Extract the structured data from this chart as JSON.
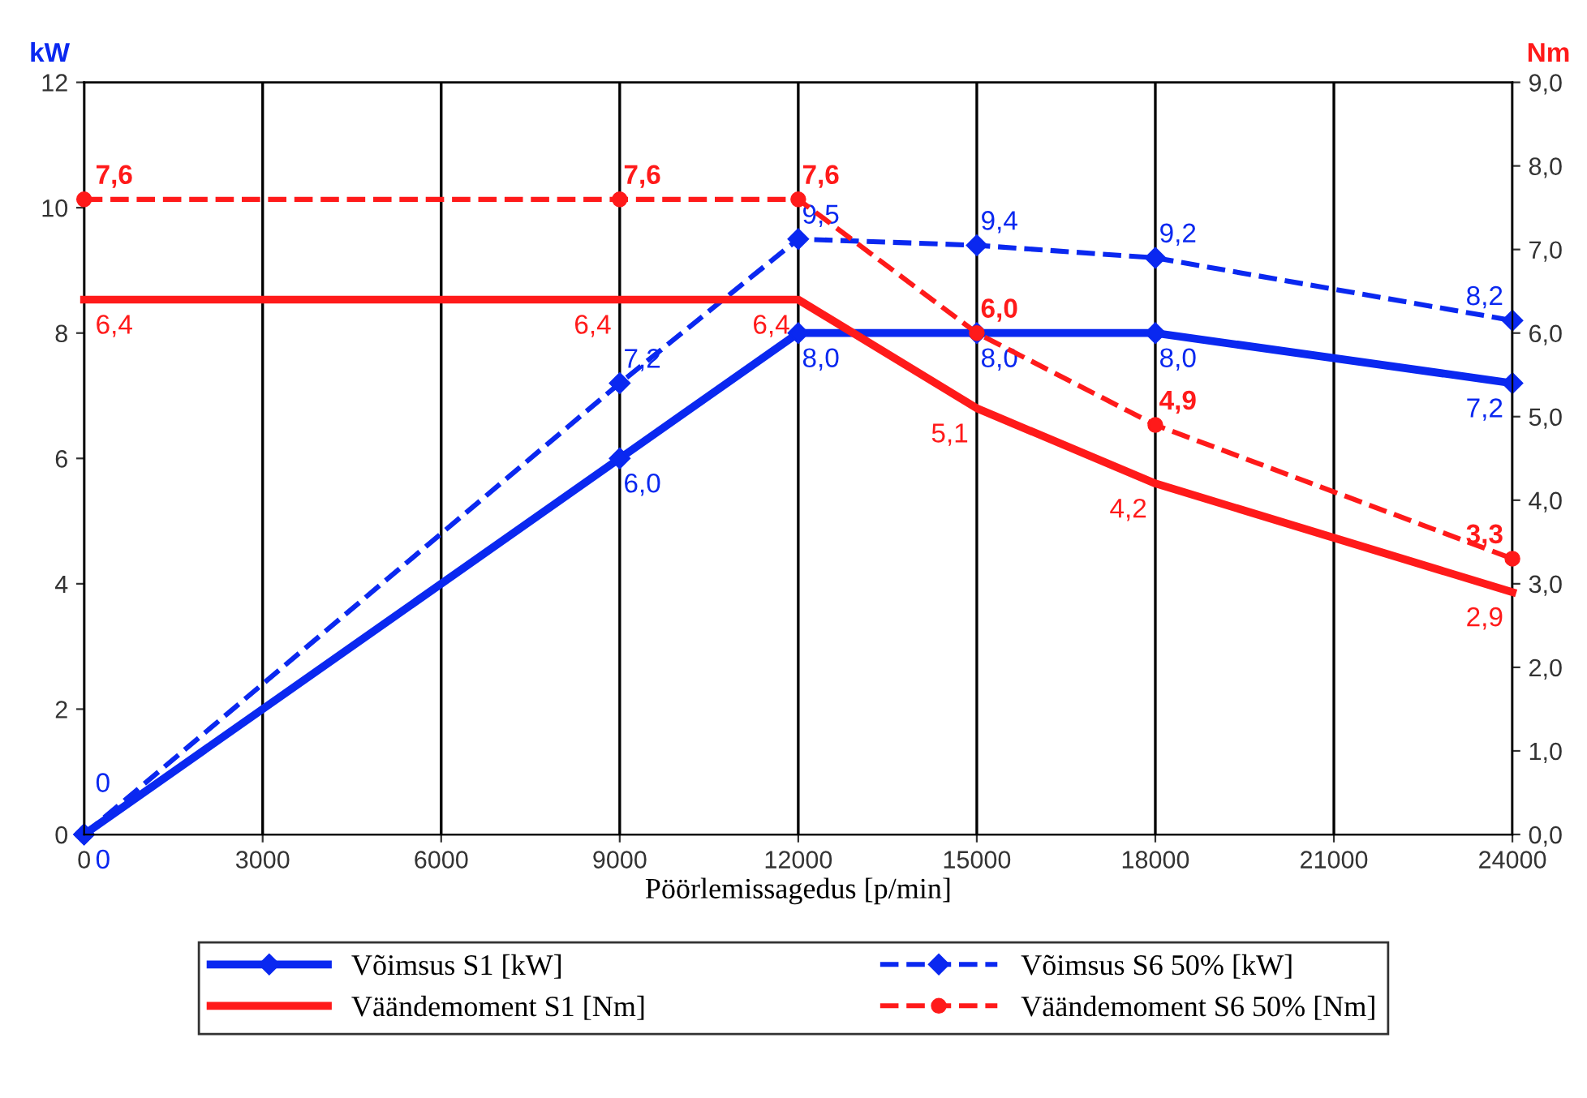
{
  "chart_data": {
    "type": "line",
    "xlabel": "Pöörlemissagedus [p/min]",
    "ylabel": "kW",
    "y2label": "Nm",
    "xlim": [
      0,
      24000
    ],
    "xticks": [
      0,
      3000,
      6000,
      9000,
      12000,
      15000,
      18000,
      21000,
      24000
    ],
    "ylim": [
      0,
      12
    ],
    "yticks": [
      0,
      2,
      4,
      6,
      8,
      10,
      12
    ],
    "y2lim": [
      0,
      9
    ],
    "y2ticks": [
      {
        "value": 0,
        "label": "0,0"
      },
      {
        "value": 1,
        "label": "1,0"
      },
      {
        "value": 2,
        "label": "2,0"
      },
      {
        "value": 3,
        "label": "3,0"
      },
      {
        "value": 4,
        "label": "4,0"
      },
      {
        "value": 5,
        "label": "5,0"
      },
      {
        "value": 6,
        "label": "6,0"
      },
      {
        "value": 7,
        "label": "7,0"
      },
      {
        "value": 8,
        "label": "8,0"
      },
      {
        "value": 9,
        "label": "9,0"
      }
    ],
    "grid": "x",
    "legend": "bottom",
    "series": [
      {
        "name": "Võimsus S1 [kW]",
        "color": "#0a28f0",
        "line_style": "solid",
        "marker": "diamond",
        "x": [
          0,
          9000,
          12000,
          15000,
          18000,
          24000
        ],
        "values": [
          0,
          6.0,
          8.0,
          8.0,
          8.0,
          7.2
        ],
        "value_labels": [
          "0",
          "6,0",
          "8,0",
          "8,0",
          "8,0",
          "7,2"
        ]
      },
      {
        "name": "Võimsus S6 50% [kW]",
        "color": "#0a28f0",
        "line_style": "dashed",
        "marker": "diamond",
        "x": [
          0,
          9000,
          12000,
          15000,
          18000,
          24000
        ],
        "values": [
          0,
          7.2,
          9.5,
          9.4,
          9.2,
          8.2
        ],
        "value_labels": [
          "0",
          "7,2",
          "9,5",
          "9,4",
          "9,2",
          "8,2"
        ]
      },
      {
        "name": "Väändemoment S1 [Nm]",
        "color": "#ff1a1a",
        "line_style": "solid",
        "marker": "none",
        "axis": "y2",
        "x": [
          0,
          9000,
          12000,
          15000,
          18000,
          24000
        ],
        "values": [
          6.4,
          6.4,
          6.4,
          5.1,
          4.2,
          2.9
        ],
        "value_labels": [
          "6,4",
          "6,4",
          "6,4",
          "5,1",
          "4,2",
          "2,9"
        ]
      },
      {
        "name": "Väändemoment S6 50% [Nm]",
        "color": "#ff1a1a",
        "line_style": "dashed",
        "marker": "circle",
        "axis": "y2",
        "x": [
          0,
          9000,
          12000,
          15000,
          18000,
          24000
        ],
        "values": [
          7.6,
          7.6,
          7.6,
          6.0,
          4.9,
          3.3
        ],
        "value_labels": [
          "7,6",
          "7,6",
          "7,6",
          "6,0",
          "4,9",
          "3,3"
        ]
      }
    ]
  }
}
